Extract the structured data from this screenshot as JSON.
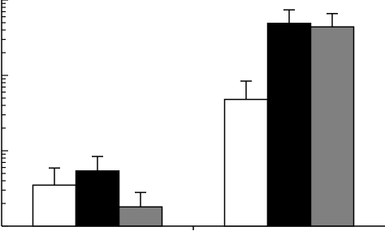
{
  "chart_data": {
    "type": "bar",
    "log_scale": true,
    "categories": [
      null,
      null
    ],
    "series": [
      {
        "color": "#ffffff",
        "values": [
          3.5,
          48
        ],
        "errors": [
          2.4,
          36
        ]
      },
      {
        "color": "#000000",
        "values": [
          5.4,
          490
        ],
        "errors": [
          3,
          250
        ]
      },
      {
        "color": "#808080",
        "values": [
          1.8,
          440
        ],
        "errors": [
          1,
          220
        ]
      }
    ],
    "ylim": [
      1,
      1000
    ],
    "yticks": [
      1,
      2,
      3,
      4,
      5,
      6,
      7,
      8,
      9,
      10,
      20,
      30,
      40,
      50,
      60,
      70,
      80,
      90,
      100,
      200,
      300,
      400,
      500,
      600,
      700,
      800,
      900,
      1000
    ]
  }
}
